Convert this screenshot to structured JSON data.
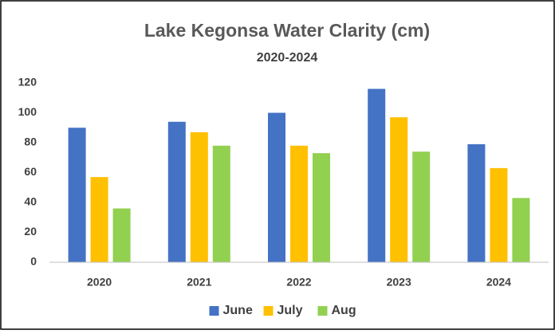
{
  "chart_data": {
    "type": "bar",
    "title": "Lake Kegonsa Water Clarity (cm)",
    "subtitle": "2020-2024",
    "categories": [
      "2020",
      "2021",
      "2022",
      "2023",
      "2024"
    ],
    "series": [
      {
        "name": "June",
        "color": "#4472c4",
        "values": [
          90,
          94,
          100,
          116,
          79
        ]
      },
      {
        "name": "July",
        "color": "#ffc000",
        "values": [
          57,
          87,
          78,
          97,
          63
        ]
      },
      {
        "name": "Aug",
        "color": "#92d050",
        "values": [
          36,
          78,
          73,
          74,
          43
        ]
      }
    ],
    "ylim": [
      0,
      120
    ],
    "yticks": [
      0,
      20,
      40,
      60,
      80,
      100,
      120
    ],
    "grid": false,
    "legend": "bottom"
  }
}
